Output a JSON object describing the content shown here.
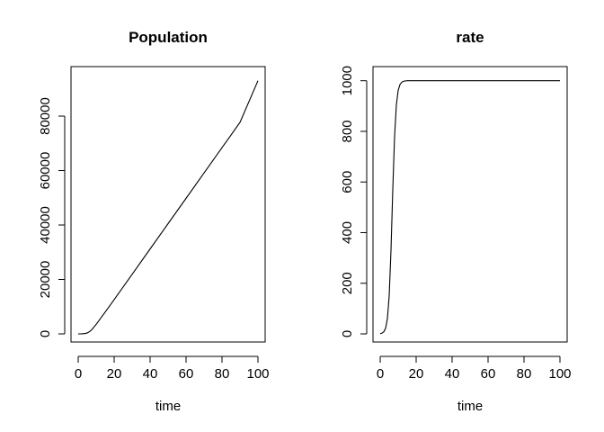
{
  "chart_data": [
    {
      "type": "line",
      "title": "Population",
      "xlabel": "time",
      "ylabel": "",
      "xlim": [
        0,
        100
      ],
      "ylim": [
        0,
        93000
      ],
      "xticks": [
        0,
        20,
        40,
        60,
        80,
        100
      ],
      "yticks": [
        0,
        20000,
        40000,
        60000,
        80000
      ],
      "grid": false,
      "series": [
        {
          "x": [
            0,
            2,
            4,
            5,
            6,
            7,
            8,
            9,
            10,
            12,
            15,
            20,
            30,
            40,
            50,
            60,
            70,
            80,
            90,
            100
          ],
          "values": [
            0,
            20,
            150,
            350,
            700,
            1200,
            1900,
            2700,
            3500,
            5300,
            8000,
            12600,
            21900,
            31200,
            40500,
            49800,
            59100,
            68400,
            77700,
            93000
          ]
        }
      ]
    },
    {
      "type": "line",
      "title": "rate",
      "xlabel": "time",
      "ylabel": "",
      "xlim": [
        0,
        100
      ],
      "ylim": [
        0,
        1000
      ],
      "xticks": [
        0,
        20,
        40,
        60,
        80,
        100
      ],
      "yticks": [
        0,
        200,
        400,
        600,
        800,
        1000
      ],
      "grid": false,
      "series": [
        {
          "x": [
            0,
            1,
            2,
            3,
            4,
            5,
            6,
            7,
            8,
            9,
            10,
            11,
            12,
            13,
            15,
            20,
            40,
            60,
            80,
            100
          ],
          "values": [
            1,
            3,
            8,
            22,
            60,
            150,
            330,
            570,
            780,
            905,
            962,
            985,
            994,
            998,
            1000,
            1000,
            1000,
            1000,
            1000,
            1000
          ]
        }
      ]
    }
  ]
}
